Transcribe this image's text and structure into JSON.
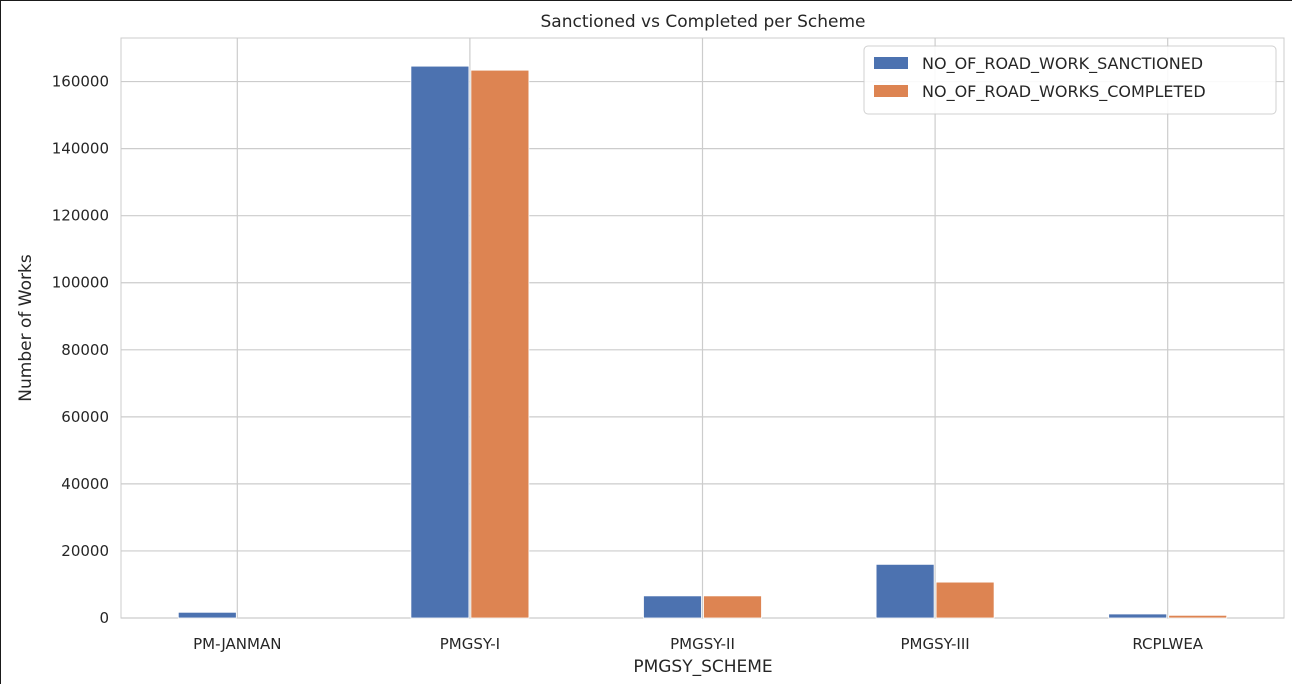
{
  "chart_data": {
    "type": "bar",
    "title": "Sanctioned vs Completed per Scheme",
    "xlabel": "PMGSY_SCHEME",
    "ylabel": "Number of Works",
    "categories": [
      "PM-JANMAN",
      "PMGSY-I",
      "PMGSY-II",
      "PMGSY-III",
      "RCPLWEA"
    ],
    "series": [
      {
        "name": "NO_OF_ROAD_WORK_SANCTIONED",
        "color": "#4c72b0",
        "values": [
          1700,
          164600,
          6600,
          16000,
          1200
        ]
      },
      {
        "name": "NO_OF_ROAD_WORKS_COMPLETED",
        "color": "#dd8452",
        "values": [
          0,
          163400,
          6600,
          10700,
          800
        ]
      }
    ],
    "ylim": [
      0,
      173000
    ],
    "yticks": [
      0,
      20000,
      40000,
      60000,
      80000,
      100000,
      120000,
      140000,
      160000
    ],
    "ytick_labels": [
      "0",
      "20000",
      "40000",
      "60000",
      "80000",
      "100000",
      "120000",
      "140000",
      "160000"
    ],
    "grid": true,
    "legend_position": "top-right"
  }
}
